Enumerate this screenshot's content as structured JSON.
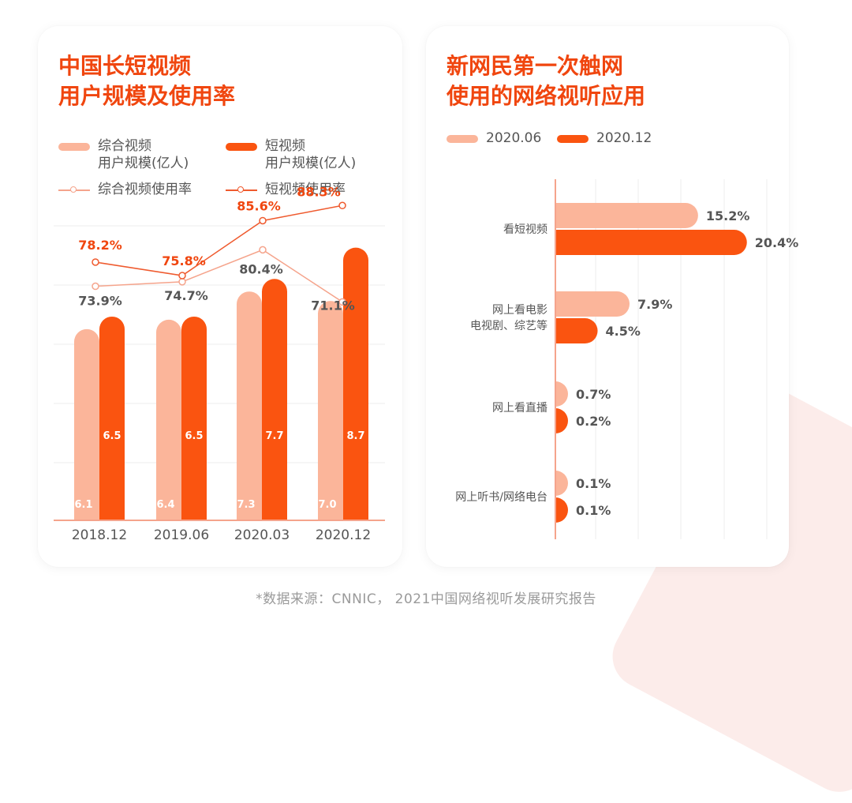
{
  "left_panel": {
    "title_lines": [
      "中国长短视频",
      "用户规模及使用率"
    ],
    "legend": {
      "bar1_lines": [
        "综合视频",
        "用户规模(亿人)"
      ],
      "bar2_lines": [
        "短视频",
        "用户规模(亿人)"
      ],
      "line1": "综合视频使用率",
      "line2": "短视频使用率"
    }
  },
  "right_panel": {
    "title_lines": [
      "新网民第一次触网",
      "使用的网络视听应用"
    ],
    "legend": {
      "s1": "2020.06",
      "s2": "2020.12"
    }
  },
  "source": "*数据来源：CNNIC，  2021中国网络视听发展研究报告",
  "colors": {
    "accent": "#f0460f",
    "light": "#fbb59a",
    "dark": "#fa5410",
    "line_light": "#f5a48c",
    "line_dark": "#ef5a2e"
  },
  "chart_data": [
    {
      "type": "bar",
      "categories": [
        "2018.12",
        "2019.06",
        "2020.03",
        "2020.12"
      ],
      "series": [
        {
          "name": "综合视频用户规模(亿人)",
          "values": [
            6.1,
            6.4,
            7.3,
            7.0
          ],
          "labels": [
            "6.1",
            "6.4",
            "7.3",
            "7.0"
          ]
        },
        {
          "name": "短视频用户规模(亿人)",
          "values": [
            6.5,
            6.5,
            7.7,
            8.7
          ],
          "labels": [
            "6.5",
            "6.5",
            "7.7",
            "8.7"
          ]
        }
      ],
      "lines": [
        {
          "name": "综合视频使用率",
          "values": [
            73.9,
            74.7,
            80.4,
            71.1
          ],
          "labels": [
            "73.9%",
            "74.7%",
            "80.4%",
            "71.1%"
          ]
        },
        {
          "name": "短视频使用率",
          "values": [
            78.2,
            75.8,
            85.6,
            88.3
          ],
          "labels": [
            "78.2%",
            "75.8%",
            "85.6%",
            "88.3%"
          ]
        }
      ],
      "grid": true
    },
    {
      "type": "bar",
      "orientation": "horizontal",
      "categories": [
        [
          "看短视频"
        ],
        [
          "网上看电影",
          "电视剧、综艺等"
        ],
        [
          "网上看直播"
        ],
        [
          "网上听书/网络电台"
        ]
      ],
      "series": [
        {
          "name": "2020.06",
          "values": [
            15.2,
            7.9,
            0.7,
            0.1
          ],
          "labels": [
            "15.2%",
            "7.9%",
            "0.7%",
            "0.1%"
          ]
        },
        {
          "name": "2020.12",
          "values": [
            20.4,
            4.5,
            0.2,
            0.1
          ],
          "labels": [
            "20.4%",
            "4.5%",
            "0.2%",
            "0.1%"
          ]
        }
      ],
      "grid": true
    }
  ]
}
